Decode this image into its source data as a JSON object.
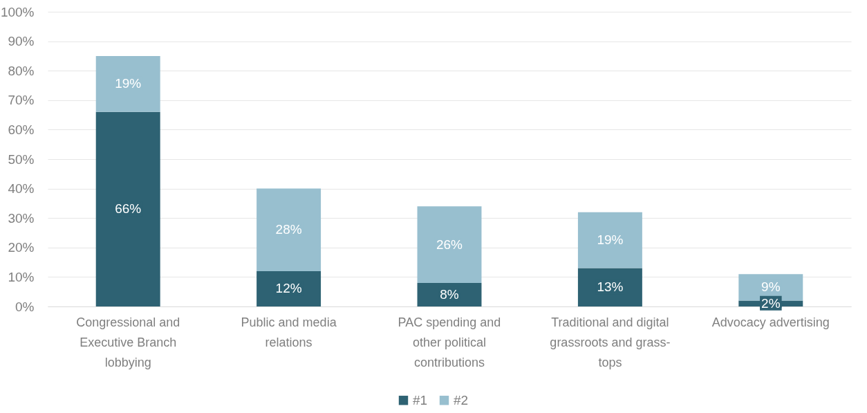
{
  "chart_data": {
    "type": "bar",
    "stacked": true,
    "categories": [
      "Congressional and Executive Branch lobbying",
      "Public and media relations",
      "PAC spending and other political contributions",
      "Traditional and digital grassroots and grass-tops",
      "Advocacy advertising"
    ],
    "series": [
      {
        "name": "#1",
        "color": "#2e6273",
        "values": [
          66,
          12,
          8,
          13,
          2
        ],
        "value_labels": [
          "66%",
          "12%",
          "8%",
          "13%",
          "2%"
        ]
      },
      {
        "name": "#2",
        "color": "#98bfcf",
        "values": [
          19,
          28,
          26,
          19,
          9
        ],
        "value_labels": [
          "19%",
          "28%",
          "26%",
          "19%",
          "9%"
        ]
      }
    ],
    "ylim": [
      0,
      100
    ],
    "yticks": [
      {
        "value": 0,
        "label": "0%"
      },
      {
        "value": 10,
        "label": "10%"
      },
      {
        "value": 20,
        "label": "20%"
      },
      {
        "value": 30,
        "label": "30%"
      },
      {
        "value": 40,
        "label": "40%"
      },
      {
        "value": 50,
        "label": "50%"
      },
      {
        "value": 60,
        "label": "60%"
      },
      {
        "value": 70,
        "label": "70%"
      },
      {
        "value": 80,
        "label": "80%"
      },
      {
        "value": 90,
        "label": "90%"
      },
      {
        "value": 100,
        "label": "100%"
      }
    ],
    "grid": "y",
    "legend": "bottom"
  }
}
